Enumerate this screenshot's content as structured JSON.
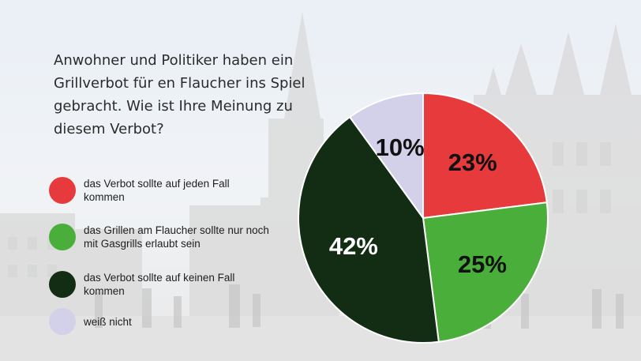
{
  "question": "Anwohner und Politiker haben ein Grillverbot für en Flaucher ins Spiel gebracht. Wie ist Ihre Meinung zu diesem Verbot?",
  "legend": [
    {
      "label": "das Verbot sollte auf jeden Fall kommen",
      "color": "#e63a3c"
    },
    {
      "label": "das Grillen am Flaucher sollte nur noch mit Gasgrills erlaubt sein",
      "color": "#4aaf3a"
    },
    {
      "label": "das Verbot sollte auf keinen Fall kommen",
      "color": "#132d14"
    },
    {
      "label": "weiß nicht",
      "color": "#d3d0ea"
    }
  ],
  "chart_data": {
    "type": "pie",
    "title": "",
    "categories": [
      "das Verbot sollte auf jeden Fall kommen",
      "das Grillen am Flaucher sollte nur noch mit Gasgrills erlaubt sein",
      "das Verbot sollte auf keinen Fall kommen",
      "weiß nicht"
    ],
    "values": [
      23,
      25,
      42,
      10
    ],
    "labels": [
      "23%",
      "25%",
      "42%",
      "10%"
    ],
    "colors": [
      "#e63a3c",
      "#4aaf3a",
      "#132d14",
      "#d3d0ea"
    ],
    "label_colors": [
      "#111111",
      "#111111",
      "#ffffff",
      "#111111"
    ],
    "start": "12 o'clock",
    "direction": "clockwise",
    "legend_position": "left"
  }
}
